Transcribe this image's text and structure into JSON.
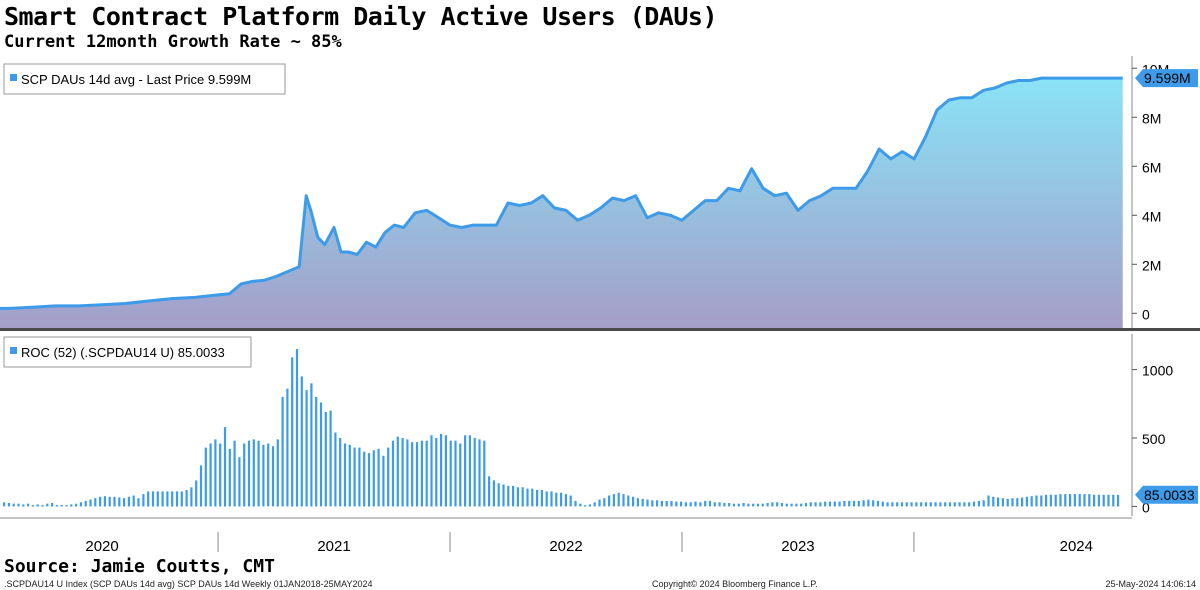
{
  "header": {
    "title": "Smart Contract Platform Daily Active Users (DAUs)",
    "subtitle": "Current 12month Growth Rate ~ 85%"
  },
  "footer": {
    "source": "Source: Jamie Coutts, CMT",
    "index_info": ".SCPDAU14 U Index (SCP DAUs 14d avg) SCP DAUs 14d  Weekly 01JAN2018-25MAY2024",
    "copyright": "Copyright© 2024 Bloomberg Finance L.P.",
    "timestamp": "25-May-2024 14:06:14"
  },
  "colors": {
    "line": "#3d9be9",
    "bar": "#3d9be9",
    "area_top": "#8ae3f6",
    "area_bottom": "#a49ec8",
    "label_bg": "#3d9be9",
    "divider": "#4a4a4a"
  },
  "chart_data": [
    {
      "type": "area",
      "legend": "SCP DAUs 14d avg - Last Price 9.599M",
      "last_value_label": "9.599M",
      "y_ticks": [
        {
          "value": 0,
          "label": "0"
        },
        {
          "value": 2,
          "label": "2M"
        },
        {
          "value": 4,
          "label": "4M"
        },
        {
          "value": 6,
          "label": "6M"
        },
        {
          "value": 8,
          "label": "8M"
        },
        {
          "value": 10,
          "label": "10M"
        }
      ],
      "ylim": [
        -0.6,
        10.5
      ],
      "unit": "M",
      "x": [
        2019.6,
        2019.7,
        2019.8,
        2019.9,
        2020.0,
        2020.1,
        2020.2,
        2020.3,
        2020.4,
        2020.5,
        2020.55,
        2020.6,
        2020.65,
        2020.7,
        2020.75,
        2020.8,
        2020.85,
        2020.88,
        2020.9,
        2020.93,
        2020.96,
        2021.0,
        2021.03,
        2021.06,
        2021.1,
        2021.14,
        2021.18,
        2021.22,
        2021.26,
        2021.3,
        2021.35,
        2021.4,
        2021.45,
        2021.5,
        2021.55,
        2021.6,
        2021.65,
        2021.7,
        2021.75,
        2021.8,
        2021.85,
        2021.9,
        2021.95,
        2022.0,
        2022.05,
        2022.1,
        2022.15,
        2022.2,
        2022.25,
        2022.3,
        2022.35,
        2022.4,
        2022.45,
        2022.5,
        2022.55,
        2022.6,
        2022.65,
        2022.7,
        2022.75,
        2022.8,
        2022.85,
        2022.9,
        2022.95,
        2023.0,
        2023.05,
        2023.1,
        2023.15,
        2023.2,
        2023.25,
        2023.3,
        2023.35,
        2023.4,
        2023.45,
        2023.5,
        2023.55,
        2023.6,
        2023.65,
        2023.7,
        2023.75,
        2023.8,
        2023.85,
        2023.9,
        2023.95,
        2024.0,
        2024.05,
        2024.1,
        2024.15,
        2024.2,
        2024.25,
        2024.3,
        2024.33,
        2024.36,
        2024.39,
        2024.4
      ],
      "y": [
        0.2,
        0.25,
        0.3,
        0.3,
        0.35,
        0.4,
        0.5,
        0.6,
        0.65,
        0.75,
        0.8,
        1.2,
        1.3,
        1.35,
        1.5,
        1.7,
        1.9,
        4.8,
        4.2,
        3.1,
        2.8,
        3.5,
        2.5,
        2.5,
        2.4,
        2.9,
        2.7,
        3.3,
        3.6,
        3.5,
        4.1,
        4.2,
        3.9,
        3.6,
        3.5,
        3.6,
        3.6,
        3.6,
        4.5,
        4.4,
        4.5,
        4.8,
        4.3,
        4.2,
        3.8,
        4.0,
        4.3,
        4.7,
        4.6,
        4.8,
        3.9,
        4.1,
        4.0,
        3.8,
        4.2,
        4.6,
        4.6,
        5.1,
        5.0,
        5.9,
        5.1,
        4.8,
        4.9,
        4.2,
        4.6,
        4.8,
        5.1,
        5.1,
        5.1,
        5.8,
        6.7,
        6.3,
        6.6,
        6.3,
        7.2,
        8.3,
        8.7,
        8.8,
        8.8,
        9.1,
        9.2,
        9.4,
        9.5,
        9.5,
        9.6,
        9.6,
        9.6,
        9.6,
        9.6,
        9.6,
        9.6,
        9.6,
        9.6,
        9.599
      ]
    },
    {
      "type": "bar",
      "legend": "ROC (52) (.SCPDAU14 U) 85.0033",
      "last_value_label": "85.0033",
      "y_ticks": [
        {
          "value": 0,
          "label": "0"
        },
        {
          "value": 500,
          "label": "500"
        },
        {
          "value": 1000,
          "label": "1000"
        }
      ],
      "ylim": [
        -70,
        1260
      ],
      "values": [
        30,
        25,
        20,
        20,
        15,
        20,
        10,
        15,
        10,
        20,
        25,
        10,
        10,
        10,
        15,
        20,
        30,
        40,
        50,
        60,
        70,
        75,
        70,
        70,
        65,
        60,
        70,
        80,
        60,
        90,
        110,
        110,
        110,
        110,
        110,
        110,
        110,
        110,
        120,
        140,
        190,
        300,
        430,
        460,
        490,
        460,
        580,
        420,
        480,
        360,
        460,
        480,
        490,
        480,
        450,
        460,
        440,
        490,
        800,
        860,
        1090,
        1150,
        950,
        850,
        900,
        800,
        760,
        690,
        700,
        540,
        500,
        460,
        450,
        430,
        430,
        400,
        390,
        410,
        420,
        370,
        430,
        480,
        510,
        500,
        490,
        470,
        470,
        480,
        480,
        520,
        500,
        530,
        520,
        480,
        480,
        460,
        520,
        520,
        500,
        490,
        480,
        220,
        190,
        170,
        160,
        150,
        150,
        140,
        140,
        130,
        130,
        120,
        120,
        110,
        110,
        100,
        100,
        90,
        80,
        40,
        20,
        10,
        15,
        30,
        50,
        60,
        80,
        90,
        100,
        90,
        80,
        70,
        60,
        55,
        50,
        45,
        45,
        40,
        40,
        40,
        35,
        35,
        30,
        30,
        35,
        30,
        40,
        40,
        30,
        30,
        25,
        25,
        20,
        20,
        25,
        20,
        20,
        20,
        20,
        25,
        30,
        30,
        25,
        20,
        20,
        20,
        20,
        25,
        30,
        30,
        30,
        35,
        35,
        35,
        35,
        40,
        40,
        40,
        40,
        45,
        50,
        45,
        40,
        35,
        30,
        30,
        30,
        30,
        30,
        30,
        30,
        30,
        30,
        30,
        30,
        30,
        30,
        30,
        30,
        30,
        30,
        30,
        35,
        40,
        45,
        80,
        70,
        65,
        60,
        55,
        60,
        60,
        65,
        70,
        75,
        80,
        80,
        85,
        85,
        85,
        90,
        90,
        90,
        90,
        90,
        90,
        90,
        85,
        85,
        85,
        85,
        85,
        85.0033
      ]
    }
  ],
  "x_axis": {
    "labels": [
      {
        "label": "2020",
        "x": 2020.0
      },
      {
        "label": "2021",
        "x": 2021.0
      },
      {
        "label": "2022",
        "x": 2022.0
      },
      {
        "label": "2023",
        "x": 2023.0
      },
      {
        "label": "2024",
        "x": 2024.2
      }
    ],
    "dividers": [
      2020.5,
      2021.5,
      2022.5,
      2023.5
    ],
    "range": [
      2019.56,
      2024.44
    ]
  }
}
